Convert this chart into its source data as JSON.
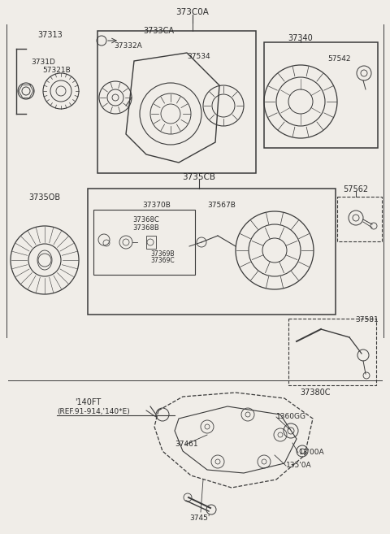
{
  "bg_color": "#f0ede8",
  "line_color": "#3a3a3a",
  "text_color": "#2a2a2a",
  "figsize": [
    4.8,
    6.57
  ],
  "dpi": 100,
  "labels": {
    "top_center": "373C0A",
    "box1_label": "3733CA",
    "box1_left_part": "37332A",
    "box1_right_part": "37534",
    "box2_label": "37340",
    "box2_part": "57542",
    "left_top": "37313",
    "left_mid": "3731D",
    "left_bot": "57321B",
    "sec2_label": "3735CB",
    "stator_label": "3735OB",
    "inner1": "37370B",
    "inner2": "37368C",
    "inner3": "37368B",
    "inner4": "37369B",
    "inner5": "37369C",
    "rotor_label": "37567B",
    "right_bolt": "57562",
    "belt_top": "37581",
    "belt_bot": "37380C",
    "ref1": "'140FT",
    "ref2": "(REF.91-914,'140*E)",
    "bot1": "37461",
    "bot2": "3745'",
    "bot3": "1360GG",
    "bot4": "13'00A",
    "bot5": "135'0A"
  }
}
